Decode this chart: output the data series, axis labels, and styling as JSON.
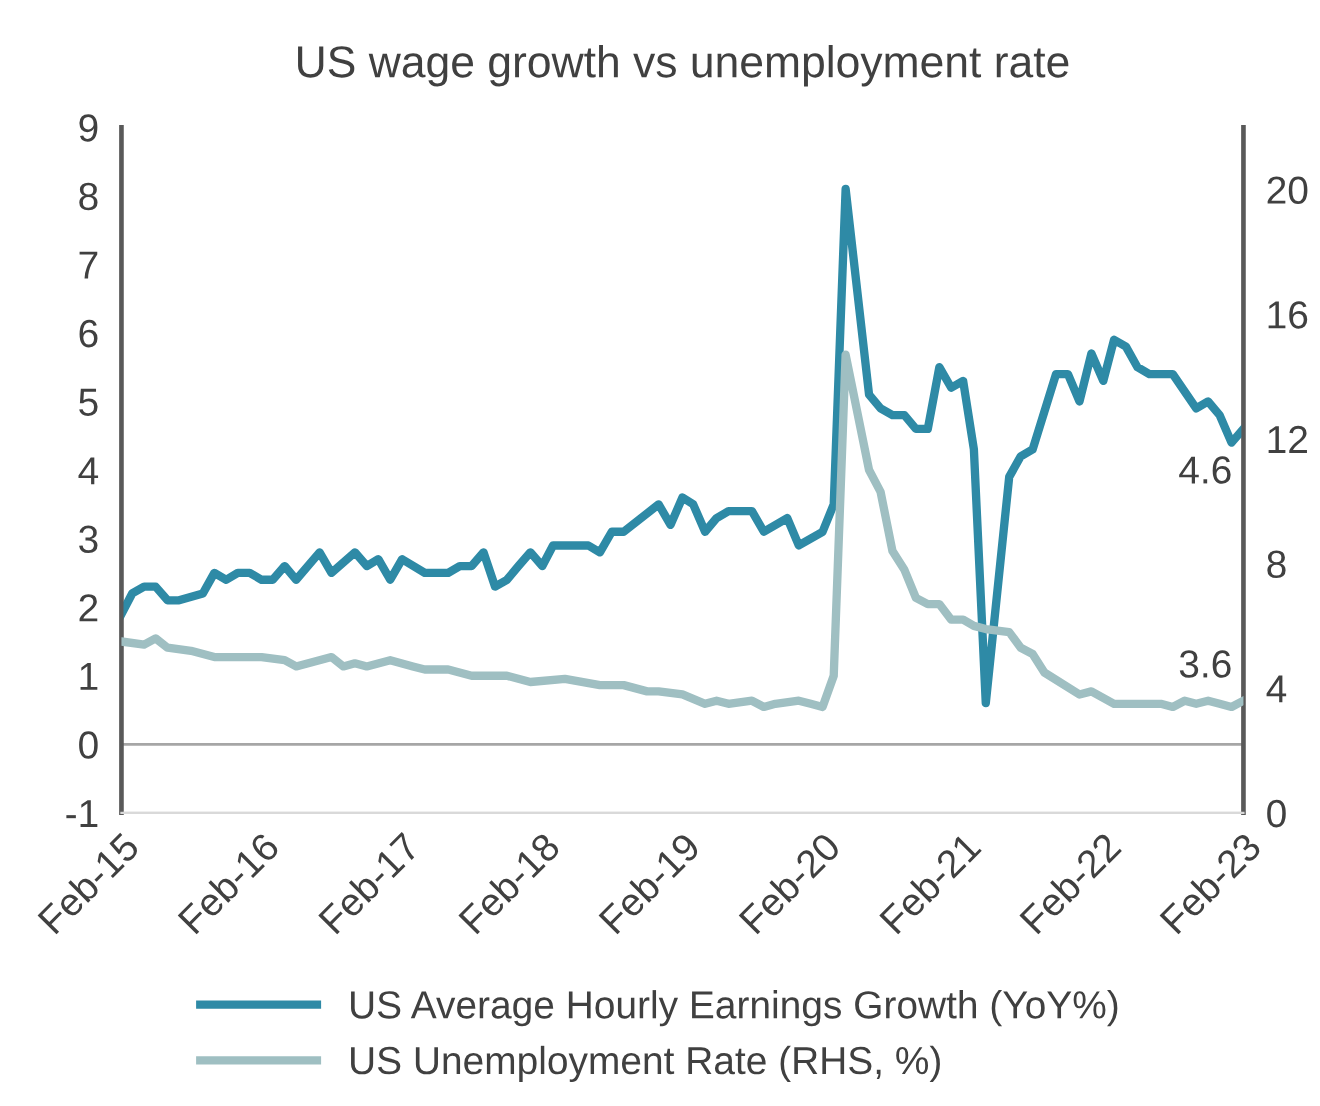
{
  "chart_data": {
    "type": "line",
    "title": "US wage growth vs unemployment rate",
    "ylim": [
      -1,
      9
    ],
    "yticks": [
      -1,
      0,
      1,
      2,
      3,
      4,
      5,
      6,
      7,
      8,
      9
    ],
    "y2lim": [
      0,
      22
    ],
    "y2ticks": [
      0,
      4,
      8,
      12,
      16,
      20
    ],
    "xlim": [
      "2015-02",
      "2023-02"
    ],
    "xticks": [
      {
        "value": "2015-02",
        "label": "Feb-15"
      },
      {
        "value": "2016-02",
        "label": "Feb-16"
      },
      {
        "value": "2017-02",
        "label": "Feb-17"
      },
      {
        "value": "2018-02",
        "label": "Feb-18"
      },
      {
        "value": "2019-02",
        "label": "Feb-19"
      },
      {
        "value": "2020-02",
        "label": "Feb-20"
      },
      {
        "value": "2021-02",
        "label": "Feb-21"
      },
      {
        "value": "2022-02",
        "label": "Feb-22"
      },
      {
        "value": "2023-02",
        "label": "Feb-23"
      }
    ],
    "legend": "bottom",
    "grid": false,
    "line_style": "solid",
    "marker": "none",
    "ref_lines": [
      {
        "axis": "y",
        "value": 0,
        "color": "#a6a6a6"
      }
    ],
    "series": [
      {
        "name": "US Average Hourly Earnings Growth (YoY%)",
        "color": "#2e8aa6",
        "axis": "y",
        "x": [
          "2015-02",
          "2015-03",
          "2015-04",
          "2015-05",
          "2015-06",
          "2015-07",
          "2015-09",
          "2015-10",
          "2015-11",
          "2015-12",
          "2016-01",
          "2016-02",
          "2016-03",
          "2016-04",
          "2016-05",
          "2016-07",
          "2016-08",
          "2016-10",
          "2016-11",
          "2016-12",
          "2017-01",
          "2017-02",
          "2017-04",
          "2017-06",
          "2017-07",
          "2017-08",
          "2017-09",
          "2017-10",
          "2017-11",
          "2017-12",
          "2018-01",
          "2018-02",
          "2018-03",
          "2018-06",
          "2018-07",
          "2018-08",
          "2018-09",
          "2018-12",
          "2019-01",
          "2019-02",
          "2019-03",
          "2019-04",
          "2019-05",
          "2019-06",
          "2019-08",
          "2019-09",
          "2019-11",
          "2019-12",
          "2020-02",
          "2020-03",
          "2020-04",
          "2020-06",
          "2020-07",
          "2020-08",
          "2020-09",
          "2020-10",
          "2020-11",
          "2020-12",
          "2021-01",
          "2021-02",
          "2021-03",
          "2021-04",
          "2021-06",
          "2021-07",
          "2021-08",
          "2021-10",
          "2021-11",
          "2021-12",
          "2022-01",
          "2022-02",
          "2022-03",
          "2022-04",
          "2022-05",
          "2022-06",
          "2022-08",
          "2022-10",
          "2022-11",
          "2022-12",
          "2023-01",
          "2023-02"
        ],
        "values": [
          1.9,
          2.2,
          2.3,
          2.3,
          2.1,
          2.1,
          2.2,
          2.5,
          2.4,
          2.5,
          2.5,
          2.4,
          2.4,
          2.6,
          2.4,
          2.8,
          2.5,
          2.8,
          2.6,
          2.7,
          2.4,
          2.7,
          2.5,
          2.5,
          2.6,
          2.6,
          2.8,
          2.3,
          2.4,
          2.6,
          2.8,
          2.6,
          2.9,
          2.9,
          2.8,
          3.1,
          3.1,
          3.5,
          3.2,
          3.6,
          3.5,
          3.1,
          3.3,
          3.4,
          3.4,
          3.1,
          3.3,
          2.9,
          3.1,
          3.5,
          8.1,
          5.1,
          4.9,
          4.8,
          4.8,
          4.6,
          4.6,
          5.5,
          5.2,
          5.3,
          4.3,
          0.6,
          3.9,
          4.2,
          4.3,
          5.4,
          5.4,
          5.0,
          5.7,
          5.3,
          5.9,
          5.8,
          5.5,
          5.4,
          5.4,
          4.9,
          5.0,
          4.8,
          4.4,
          4.6
        ],
        "value_labels": [
          null,
          null,
          null,
          null,
          null,
          null,
          null,
          null,
          null,
          null,
          null,
          null,
          null,
          null,
          null,
          null,
          null,
          null,
          null,
          null,
          null,
          null,
          null,
          null,
          null,
          null,
          null,
          null,
          null,
          null,
          null,
          null,
          null,
          null,
          null,
          null,
          null,
          null,
          null,
          null,
          null,
          null,
          null,
          null,
          null,
          null,
          null,
          null,
          null,
          null,
          null,
          null,
          null,
          null,
          null,
          null,
          null,
          null,
          null,
          null,
          null,
          null,
          null,
          null,
          null,
          null,
          null,
          null,
          null,
          null,
          null,
          null,
          null,
          null,
          null,
          null,
          null,
          null,
          null,
          "4.6"
        ]
      },
      {
        "name": "US Unemployment Rate (RHS, %)",
        "color": "#9fbfc2",
        "axis": "y2",
        "x": [
          "2015-02",
          "2015-04",
          "2015-05",
          "2015-06",
          "2015-08",
          "2015-10",
          "2015-12",
          "2016-02",
          "2016-04",
          "2016-05",
          "2016-08",
          "2016-09",
          "2016-10",
          "2016-11",
          "2017-01",
          "2017-03",
          "2017-04",
          "2017-06",
          "2017-08",
          "2017-11",
          "2018-01",
          "2018-04",
          "2018-07",
          "2018-09",
          "2018-11",
          "2018-12",
          "2019-02",
          "2019-04",
          "2019-05",
          "2019-06",
          "2019-08",
          "2019-09",
          "2019-10",
          "2019-12",
          "2020-01",
          "2020-02",
          "2020-03",
          "2020-04",
          "2020-06",
          "2020-07",
          "2020-08",
          "2020-09",
          "2020-10",
          "2020-11",
          "2020-12",
          "2021-01",
          "2021-02",
          "2021-03",
          "2021-04",
          "2021-06",
          "2021-07",
          "2021-08",
          "2021-09",
          "2021-12",
          "2022-01",
          "2022-03",
          "2022-07",
          "2022-08",
          "2022-09",
          "2022-10",
          "2022-11",
          "2022-12",
          "2023-01",
          "2023-02"
        ],
        "values": [
          5.5,
          5.4,
          5.6,
          5.3,
          5.2,
          5.0,
          5.0,
          5.0,
          4.9,
          4.7,
          5.0,
          4.7,
          4.8,
          4.7,
          4.9,
          4.7,
          4.6,
          4.6,
          4.4,
          4.4,
          4.2,
          4.3,
          4.1,
          4.1,
          3.9,
          3.9,
          3.8,
          3.5,
          3.6,
          3.5,
          3.6,
          3.4,
          3.5,
          3.6,
          3.5,
          3.4,
          4.4,
          14.7,
          11.0,
          10.3,
          8.4,
          7.8,
          6.9,
          6.7,
          6.7,
          6.2,
          6.2,
          6.0,
          5.9,
          5.8,
          5.3,
          5.1,
          4.5,
          3.8,
          3.9,
          3.5,
          3.5,
          3.4,
          3.6,
          3.5,
          3.6,
          3.5,
          3.4,
          3.6
        ],
        "value_labels": [
          null,
          null,
          null,
          null,
          null,
          null,
          null,
          null,
          null,
          null,
          null,
          null,
          null,
          null,
          null,
          null,
          null,
          null,
          null,
          null,
          null,
          null,
          null,
          null,
          null,
          null,
          null,
          null,
          null,
          null,
          null,
          null,
          null,
          null,
          null,
          null,
          null,
          null,
          null,
          null,
          null,
          null,
          null,
          null,
          null,
          null,
          null,
          null,
          null,
          null,
          null,
          null,
          null,
          null,
          null,
          null,
          null,
          null,
          null,
          null,
          null,
          null,
          null,
          "3.6"
        ]
      }
    ]
  }
}
